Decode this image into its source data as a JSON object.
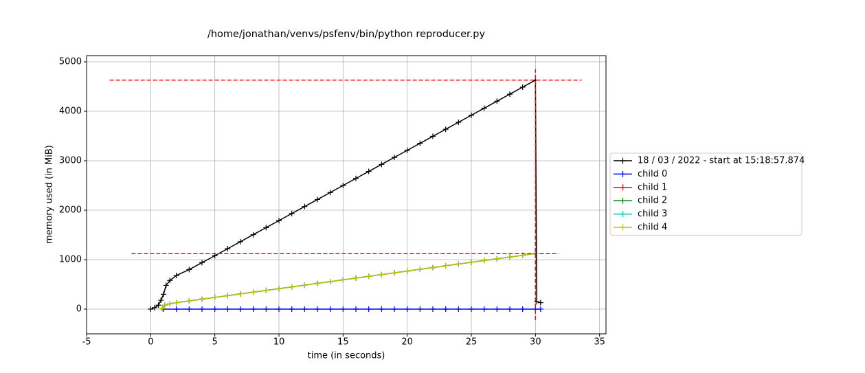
{
  "chart_data": {
    "type": "line",
    "title": "/home/jonathan/venvs/psfenv/bin/python reproducer.py",
    "xlabel": "time (in seconds)",
    "ylabel": "memory used (in MiB)",
    "xlim": [
      -5,
      35.5
    ],
    "ylim": [
      -500,
      5125
    ],
    "xticks": [
      -5,
      0,
      5,
      10,
      15,
      20,
      25,
      30,
      35
    ],
    "yticks": [
      0,
      1000,
      2000,
      3000,
      4000,
      5000
    ],
    "grid": true,
    "legend": "outside-right",
    "series": [
      {
        "name": "18 / 03 / 2022 - start at 15:18:57.874",
        "color": "#000000",
        "x": [
          0,
          0.3,
          0.6,
          0.8,
          1,
          1.2,
          1.5,
          2,
          3,
          4,
          5,
          6,
          7,
          8,
          9,
          10,
          11,
          12,
          13,
          14,
          15,
          16,
          17,
          18,
          19,
          20,
          21,
          22,
          23,
          24,
          25,
          26,
          27,
          28,
          29,
          30,
          30.1,
          30.4
        ],
        "values": [
          0,
          30,
          80,
          180,
          300,
          480,
          580,
          680,
          800,
          940,
          1080,
          1222,
          1364,
          1506,
          1648,
          1790,
          1932,
          2074,
          2216,
          2358,
          2500,
          2642,
          2784,
          2926,
          3068,
          3210,
          3352,
          3494,
          3636,
          3778,
          3920,
          4062,
          4204,
          4346,
          4488,
          4630,
          150,
          130
        ]
      },
      {
        "name": "child 0",
        "color": "#0000ff",
        "x": [
          1,
          2,
          3,
          4,
          5,
          6,
          7,
          8,
          9,
          10,
          11,
          12,
          13,
          14,
          15,
          16,
          17,
          18,
          19,
          20,
          21,
          22,
          23,
          24,
          25,
          26,
          27,
          28,
          29,
          30,
          30.4
        ],
        "values": [
          0,
          0,
          0,
          0,
          0,
          0,
          0,
          0,
          0,
          0,
          0,
          0,
          0,
          0,
          0,
          0,
          0,
          0,
          0,
          0,
          0,
          0,
          0,
          0,
          0,
          0,
          0,
          0,
          0,
          0,
          0
        ]
      },
      {
        "name": "child 1",
        "color": "#ff0000",
        "x": [
          0.9,
          1.1,
          1.5,
          2,
          3,
          4,
          5,
          6,
          7,
          8,
          9,
          10,
          11,
          12,
          13,
          14,
          15,
          16,
          17,
          18,
          19,
          20,
          21,
          22,
          23,
          24,
          25,
          26,
          27,
          28,
          29,
          30
        ],
        "values": [
          10,
          80,
          110,
          130,
          166,
          201,
          237,
          272,
          308,
          343,
          379,
          414,
          450,
          485,
          521,
          556,
          592,
          627,
          663,
          698,
          734,
          769,
          805,
          840,
          876,
          911,
          947,
          982,
          1018,
          1053,
          1089,
          1124
        ]
      },
      {
        "name": "child 2",
        "color": "#008000",
        "x": [
          0.9,
          1.1,
          1.5,
          2,
          3,
          4,
          5,
          6,
          7,
          8,
          9,
          10,
          11,
          12,
          13,
          14,
          15,
          16,
          17,
          18,
          19,
          20,
          21,
          22,
          23,
          24,
          25,
          26,
          27,
          28,
          29,
          30
        ],
        "values": [
          10,
          80,
          110,
          130,
          166,
          201,
          237,
          272,
          308,
          343,
          379,
          414,
          450,
          485,
          521,
          556,
          592,
          627,
          663,
          698,
          734,
          769,
          805,
          840,
          876,
          911,
          947,
          982,
          1018,
          1053,
          1089,
          1124
        ]
      },
      {
        "name": "child 3",
        "color": "#00bfbf",
        "x": [
          0.9,
          1.1,
          1.5,
          2,
          3,
          4,
          5,
          6,
          7,
          8,
          9,
          10,
          11,
          12,
          13,
          14,
          15,
          16,
          17,
          18,
          19,
          20,
          21,
          22,
          23,
          24,
          25,
          26,
          27,
          28,
          29,
          30
        ],
        "values": [
          10,
          80,
          110,
          130,
          166,
          201,
          237,
          272,
          308,
          343,
          379,
          414,
          450,
          485,
          521,
          556,
          592,
          627,
          663,
          698,
          734,
          769,
          805,
          840,
          876,
          911,
          947,
          982,
          1018,
          1053,
          1089,
          1124
        ]
      },
      {
        "name": "child 4",
        "color": "#bfbf00",
        "x": [
          0.9,
          1.1,
          1.5,
          2,
          3,
          4,
          5,
          6,
          7,
          8,
          9,
          10,
          11,
          12,
          13,
          14,
          15,
          16,
          17,
          18,
          19,
          20,
          21,
          22,
          23,
          24,
          25,
          26,
          27,
          28,
          29,
          30
        ],
        "values": [
          10,
          80,
          110,
          130,
          166,
          201,
          237,
          272,
          308,
          343,
          379,
          414,
          450,
          485,
          521,
          556,
          592,
          627,
          663,
          698,
          734,
          769,
          805,
          840,
          876,
          911,
          947,
          982,
          1018,
          1053,
          1089,
          1124
        ]
      }
    ],
    "max_lines": {
      "color": "#ff0000",
      "horizontal": [
        {
          "y": 4630,
          "x": [
            -3.2,
            33.6
          ]
        },
        {
          "y": 1124,
          "x": [
            -1.5,
            31.8
          ]
        }
      ],
      "vertical": [
        {
          "x": 30,
          "y": [
            -220,
            4850
          ]
        }
      ]
    }
  }
}
